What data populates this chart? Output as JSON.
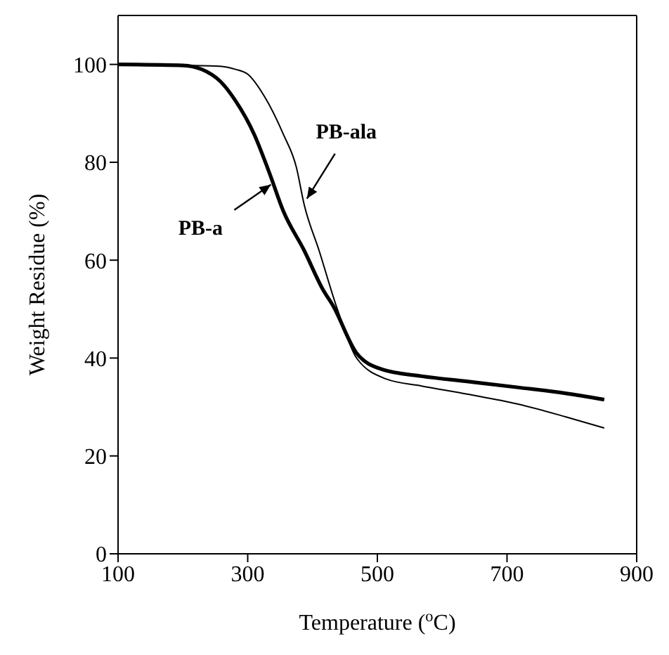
{
  "chart_data": {
    "type": "line",
    "xlabel": "Temperature ($^{o}$C)",
    "ylabel": "Weight Residue (%)",
    "xlim": [
      100,
      900
    ],
    "xticks": [
      100,
      300,
      500,
      700,
      900
    ],
    "ylim": [
      0,
      110
    ],
    "yticks": [
      0,
      20,
      40,
      60,
      80,
      100
    ],
    "marker": "none",
    "line_style": "solid",
    "series": [
      {
        "color": "#000000",
        "x": [
          100,
          200,
          229,
          258,
          281,
          310,
          333,
          355,
          387,
          416,
          432,
          468,
          507,
          568,
          640,
          717,
          790,
          850
        ],
        "values": [
          100,
          99.8,
          99,
          96.5,
          92.6,
          85.7,
          78,
          70,
          62,
          54,
          50.6,
          41,
          37.7,
          36.3,
          35.2,
          34,
          32.8,
          31.5
        ]
      },
      {
        "color": "#000000",
        "x": [
          100,
          200,
          260,
          281,
          300,
          326,
          355,
          375,
          387,
          410,
          439,
          468,
          514,
          568,
          640,
          717,
          790,
          850
        ],
        "values": [
          100,
          99.8,
          99.6,
          99,
          98,
          93.4,
          85.7,
          79,
          71.4,
          62,
          49.7,
          40,
          35.7,
          34.3,
          32.6,
          30.6,
          28,
          25.7
        ]
      }
    ],
    "annotations": [
      {
        "text": "PB-a",
        "x": 340,
        "y": 76
      },
      {
        "text": "PB-ala",
        "x": 387,
        "y": 72
      }
    ]
  }
}
